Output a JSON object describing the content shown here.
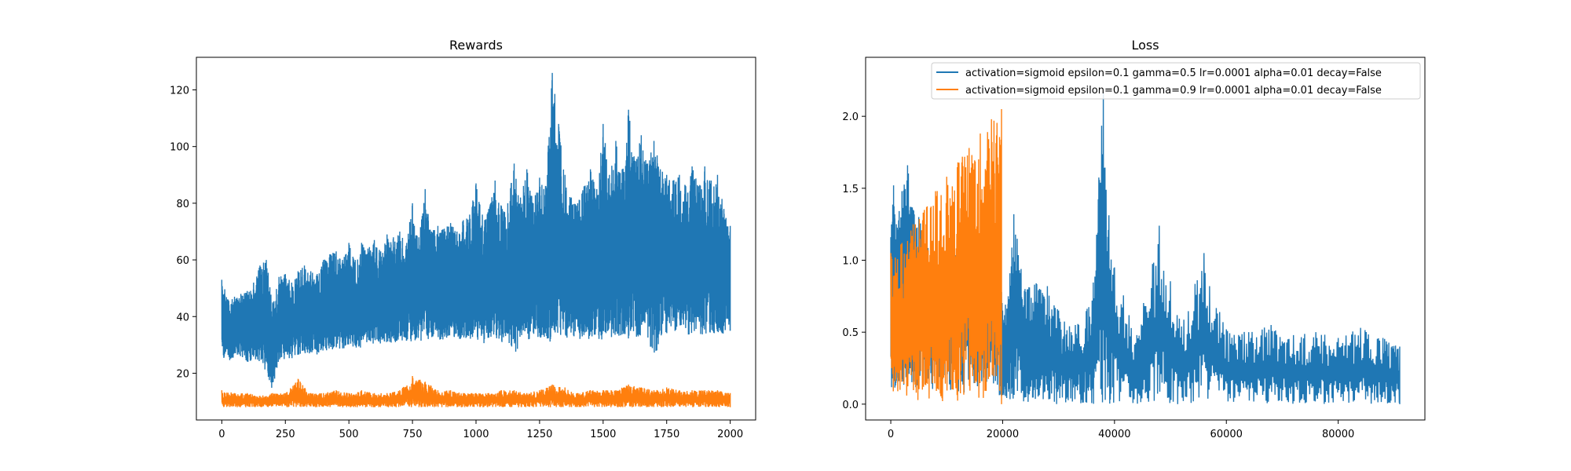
{
  "colors": {
    "series_0": "#1f77b4",
    "series_1": "#ff7f0e",
    "axes": "#000000",
    "background": "#ffffff"
  },
  "chart_data": [
    {
      "type": "line",
      "title": "Rewards",
      "xlabel": "",
      "ylabel": "",
      "xlim": [
        -100,
        2100
      ],
      "ylim": [
        3.5,
        131.5
      ],
      "grid": false,
      "legend": null,
      "xticks": [
        0,
        250,
        500,
        750,
        1000,
        1250,
        1500,
        1750,
        2000
      ],
      "xtick_labels": [
        "0",
        "250",
        "500",
        "750",
        "1000",
        "1250",
        "1500",
        "1750",
        "2000"
      ],
      "yticks": [
        20,
        40,
        60,
        80,
        100,
        120
      ],
      "ytick_labels": [
        "20",
        "40",
        "60",
        "80",
        "100",
        "120"
      ],
      "series": [
        {
          "color": "#1f77b4",
          "x": [
            0,
            25,
            50,
            75,
            100,
            125,
            150,
            175,
            200,
            225,
            250,
            275,
            300,
            325,
            350,
            375,
            400,
            425,
            450,
            475,
            500,
            525,
            550,
            575,
            600,
            625,
            650,
            675,
            700,
            725,
            750,
            775,
            800,
            825,
            850,
            875,
            900,
            925,
            950,
            975,
            1000,
            1025,
            1050,
            1075,
            1100,
            1125,
            1150,
            1175,
            1200,
            1225,
            1250,
            1275,
            1300,
            1325,
            1350,
            1375,
            1400,
            1425,
            1450,
            1475,
            1500,
            1525,
            1550,
            1575,
            1600,
            1625,
            1650,
            1675,
            1700,
            1725,
            1750,
            1775,
            1800,
            1825,
            1850,
            1875,
            1900,
            1925,
            1950,
            1975,
            2000
          ],
          "values_high": [
            53,
            46,
            47,
            48,
            49,
            52,
            58,
            60,
            45,
            54,
            55,
            52,
            56,
            58,
            56,
            55,
            60,
            62,
            63,
            60,
            66,
            60,
            66,
            64,
            67,
            63,
            69,
            68,
            70,
            65,
            80,
            68,
            85,
            70,
            72,
            71,
            73,
            70,
            74,
            76,
            87,
            76,
            78,
            88,
            79,
            80,
            94,
            82,
            92,
            80,
            89,
            86,
            126,
            108,
            90,
            82,
            80,
            86,
            92,
            85,
            108,
            90,
            102,
            92,
            113,
            95,
            104,
            94,
            102,
            92,
            90,
            88,
            90,
            86,
            93,
            86,
            93,
            88,
            90,
            78,
            72
          ],
          "values_low": [
            25,
            24,
            25,
            26,
            24,
            23,
            24,
            20,
            13,
            24,
            25,
            25,
            26,
            27,
            27,
            26,
            28,
            28,
            29,
            28,
            30,
            29,
            29,
            30,
            30,
            30,
            31,
            30,
            31,
            30,
            31,
            31,
            31,
            32,
            31,
            32,
            32,
            31,
            32,
            32,
            32,
            30,
            31,
            32,
            31,
            31,
            23,
            32,
            31,
            32,
            32,
            31,
            30,
            31,
            32,
            33,
            32,
            32,
            32,
            32,
            31,
            33,
            32,
            33,
            32,
            32,
            33,
            33,
            23,
            33,
            33,
            34,
            33,
            34,
            33,
            33,
            34,
            34,
            33,
            34,
            35
          ]
        },
        {
          "color": "#ff7f0e",
          "x": [
            0,
            50,
            100,
            150,
            200,
            250,
            300,
            350,
            400,
            450,
            500,
            550,
            600,
            650,
            700,
            750,
            800,
            850,
            900,
            950,
            1000,
            1050,
            1100,
            1150,
            1200,
            1250,
            1300,
            1350,
            1400,
            1450,
            1500,
            1550,
            1600,
            1650,
            1700,
            1750,
            1800,
            1850,
            1900,
            1950,
            2000
          ],
          "values_high": [
            14,
            13,
            13,
            12,
            13,
            13,
            18,
            13,
            13,
            14,
            13,
            14,
            13,
            13,
            14,
            19,
            17,
            14,
            14,
            13,
            13,
            13,
            14,
            14,
            13,
            14,
            16,
            15,
            13,
            14,
            14,
            14,
            16,
            15,
            14,
            15,
            14,
            14,
            14,
            14,
            13
          ],
          "values_low": [
            8,
            8,
            8,
            8,
            8,
            8,
            8,
            8,
            8,
            8,
            8,
            8,
            8,
            8,
            8,
            8,
            8,
            8,
            8,
            8,
            8,
            8,
            8,
            8,
            8,
            8,
            8,
            8,
            8,
            8,
            8,
            8,
            8,
            8,
            8,
            8,
            8,
            8,
            8,
            8,
            8
          ]
        }
      ]
    },
    {
      "type": "line",
      "title": "Loss",
      "xlabel": "",
      "ylabel": "",
      "xlim": [
        -4500,
        95500
      ],
      "ylim": [
        -0.11,
        2.41
      ],
      "grid": false,
      "legend": "top-right",
      "xticks": [
        0,
        20000,
        40000,
        60000,
        80000
      ],
      "xtick_labels": [
        "0",
        "20000",
        "40000",
        "60000",
        "80000"
      ],
      "yticks": [
        0.0,
        0.5,
        1.0,
        1.5,
        2.0
      ],
      "ytick_labels": [
        "0.0",
        "0.5",
        "1.0",
        "1.5",
        "2.0"
      ],
      "series": [
        {
          "name": "activation=sigmoid epsilon=0.1 gamma=0.5 lr=0.0001 alpha=0.01 decay=False",
          "color": "#1f77b4",
          "x": [
            0,
            500,
            1000,
            2000,
            3000,
            4000,
            5000,
            8000,
            12000,
            16000,
            19500,
            20000,
            21000,
            22000,
            24000,
            26000,
            28000,
            30000,
            33000,
            36000,
            38000,
            40000,
            44000,
            48000,
            52000,
            56000,
            60000,
            64000,
            68000,
            72000,
            76000,
            80000,
            84000,
            88000,
            91000
          ],
          "values_high": [
            1.16,
            1.52,
            1.25,
            1.48,
            1.66,
            1.35,
            1.3,
            1.05,
            1.05,
            1.0,
            1.0,
            0.65,
            0.75,
            1.32,
            0.8,
            0.84,
            0.82,
            0.65,
            0.55,
            0.72,
            2.17,
            0.95,
            0.48,
            1.24,
            0.54,
            1.05,
            0.52,
            0.5,
            0.55,
            0.48,
            0.5,
            0.46,
            0.53,
            0.46,
            0.4
          ],
          "values_low": [
            0.1,
            0.1,
            0.1,
            0.1,
            0.1,
            0.1,
            0.1,
            0.1,
            0.08,
            0.06,
            0.05,
            0.04,
            0.03,
            0.02,
            0.01,
            0.005,
            0.0,
            0.0,
            0.0,
            0.0,
            0.0,
            0.0,
            0.0,
            0.0,
            0.0,
            0.0,
            0.0,
            0.0,
            0.0,
            0.0,
            0.0,
            0.0,
            0.0,
            0.0,
            0.0
          ]
        },
        {
          "name": "activation=sigmoid epsilon=0.1 gamma=0.9 lr=0.0001 alpha=0.01 decay=False",
          "color": "#ff7f0e",
          "x": [
            0,
            2000,
            4000,
            6000,
            8000,
            10000,
            12000,
            14000,
            16000,
            18000,
            19800
          ],
          "values_high": [
            1.05,
            1.12,
            1.25,
            1.35,
            1.48,
            1.58,
            1.68,
            1.78,
            1.88,
            1.98,
            2.05
          ],
          "values_low": [
            0.08,
            0.05,
            0.03,
            0.02,
            0.01,
            0.005,
            0.0,
            0.0,
            0.0,
            0.0,
            0.0
          ]
        }
      ]
    }
  ]
}
